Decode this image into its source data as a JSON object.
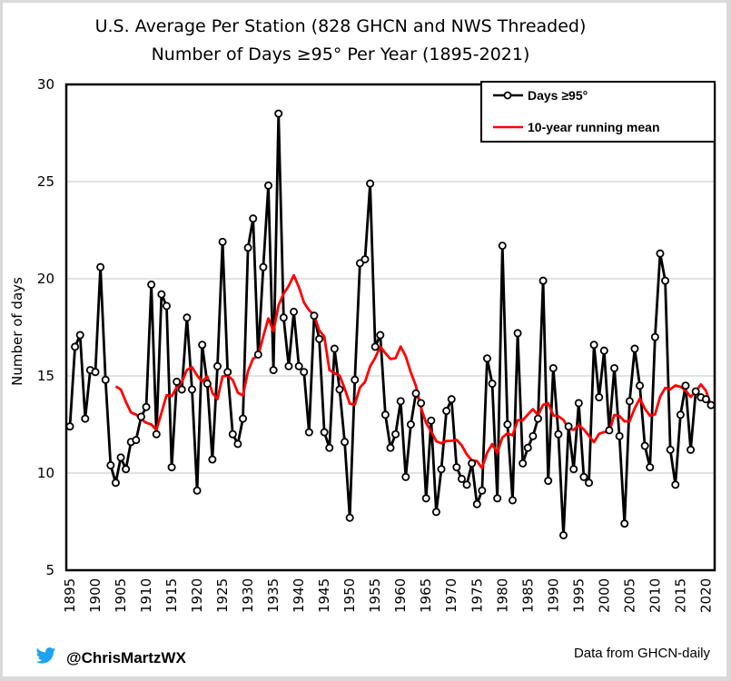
{
  "chart_data": {
    "type": "line",
    "title": "U.S. Average Per Station (828 GHCN and NWS Threaded)",
    "subtitle": "Number of Days ≥95° Per Year (1895-2021)",
    "xlabel": "",
    "ylabel": "Number of days",
    "ylim": [
      5,
      30
    ],
    "xlim": [
      1895,
      2021
    ],
    "yticks": [
      "5",
      "10",
      "15",
      "20",
      "25",
      "30"
    ],
    "xticks": [
      "1895",
      "1900",
      "1905",
      "1910",
      "1915",
      "1920",
      "1925",
      "1930",
      "1935",
      "1940",
      "1945",
      "1950",
      "1955",
      "1960",
      "1965",
      "1970",
      "1975",
      "1980",
      "1985",
      "1990",
      "1995",
      "2000",
      "2005",
      "2010",
      "2015",
      "2020"
    ],
    "grid": true,
    "legend_position": "top-right",
    "x_start": 1895,
    "series": [
      {
        "name": "Days ≥95°",
        "color": "#000000",
        "marker": "circle",
        "values": [
          12.4,
          16.5,
          17.1,
          12.8,
          15.3,
          15.2,
          20.6,
          14.8,
          10.4,
          9.5,
          10.8,
          10.2,
          11.6,
          11.7,
          12.9,
          13.4,
          19.7,
          12.0,
          19.2,
          18.6,
          10.3,
          14.7,
          14.3,
          18.0,
          14.3,
          9.1,
          16.6,
          14.6,
          10.7,
          15.5,
          21.9,
          15.2,
          12.0,
          11.5,
          12.8,
          21.6,
          23.1,
          16.1,
          20.6,
          24.8,
          15.3,
          28.5,
          18.0,
          15.5,
          18.3,
          15.5,
          15.2,
          12.1,
          18.1,
          16.9,
          12.1,
          11.3,
          16.4,
          14.3,
          11.6,
          7.7,
          14.8,
          20.8,
          21.0,
          24.9,
          16.5,
          17.1,
          13.0,
          11.3,
          12.0,
          13.7,
          9.8,
          12.5,
          14.1,
          13.6,
          8.7,
          12.7,
          8.0,
          10.2,
          13.2,
          13.8,
          10.3,
          9.7,
          9.4,
          10.5,
          8.4,
          9.1,
          15.9,
          14.6,
          8.7,
          21.7,
          12.5,
          8.6,
          17.2,
          10.5,
          11.3,
          11.9,
          12.8,
          19.9,
          9.6,
          15.4,
          12.0,
          6.8,
          12.4,
          10.2,
          13.6,
          9.8,
          9.5,
          16.6,
          13.9,
          16.3,
          12.2,
          15.4,
          11.9,
          7.4,
          13.7,
          16.4,
          14.5,
          11.4,
          10.3,
          17.0,
          21.3,
          19.9,
          11.2,
          9.4,
          13.0,
          14.5,
          11.2,
          14.2,
          13.9,
          13.8,
          13.5
        ]
      },
      {
        "name": "10-year running mean",
        "color": "#ff0000",
        "window": 10
      }
    ]
  },
  "footer": {
    "twitter_handle": "@ChrisMartzWX",
    "twitter_icon": "twitter-bird-icon",
    "source": "Data  from GHCN-daily",
    "twitter_color": "#1da1f2"
  }
}
